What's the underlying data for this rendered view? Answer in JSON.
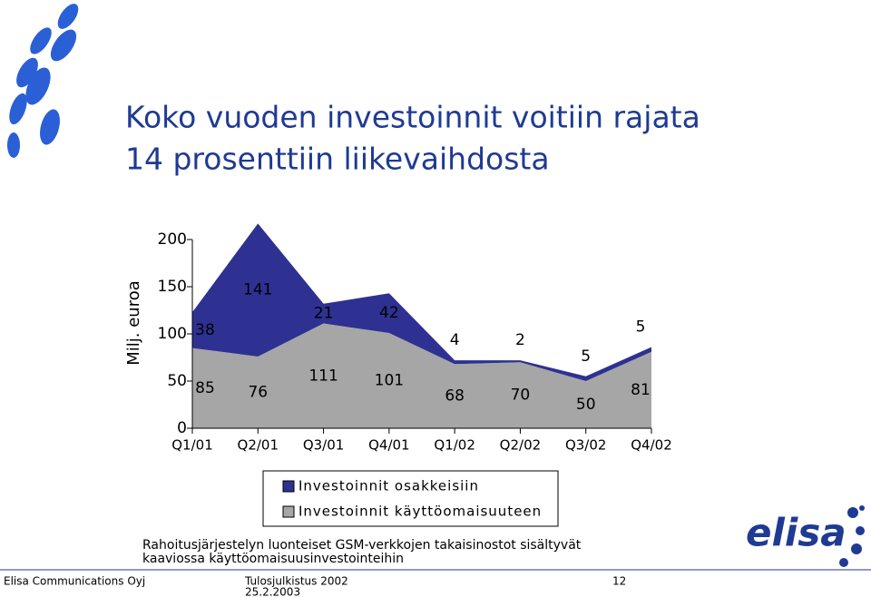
{
  "title": [
    "Koko vuoden investoinnit voitiin rajata",
    "14 prosenttiin liikevaihdosta"
  ],
  "chart_data": {
    "type": "stacked-area",
    "y_label": "Milj. euroa",
    "categories": [
      "Q1/01",
      "Q2/01",
      "Q3/01",
      "Q4/01",
      "Q1/02",
      "Q2/02",
      "Q3/02",
      "Q4/02"
    ],
    "series": [
      {
        "name": "Investoinnit käyttöomaisuuteen",
        "color": "#a6a6a6",
        "values": [
          85,
          76,
          111,
          101,
          68,
          70,
          50,
          81
        ]
      },
      {
        "name": "Investoinnit osakkeisiin",
        "color": "#2e3192",
        "values": [
          38,
          141,
          21,
          42,
          4,
          2,
          5,
          5
        ]
      }
    ],
    "ylim": [
      0,
      200
    ],
    "yticks": [
      0,
      50,
      100,
      150,
      200
    ]
  },
  "note": [
    "Rahoitusjärjestelyn luonteiset GSM-verkkojen takaisinostot sisältyvät",
    "kaaviossa käyttöomaisuusinvestointeihin"
  ],
  "logo": "elisa",
  "footer": {
    "company": "Elisa Communications Oyj",
    "event": "Tulosjulkistus 2002",
    "date": "25.2.2003",
    "page": "12"
  }
}
